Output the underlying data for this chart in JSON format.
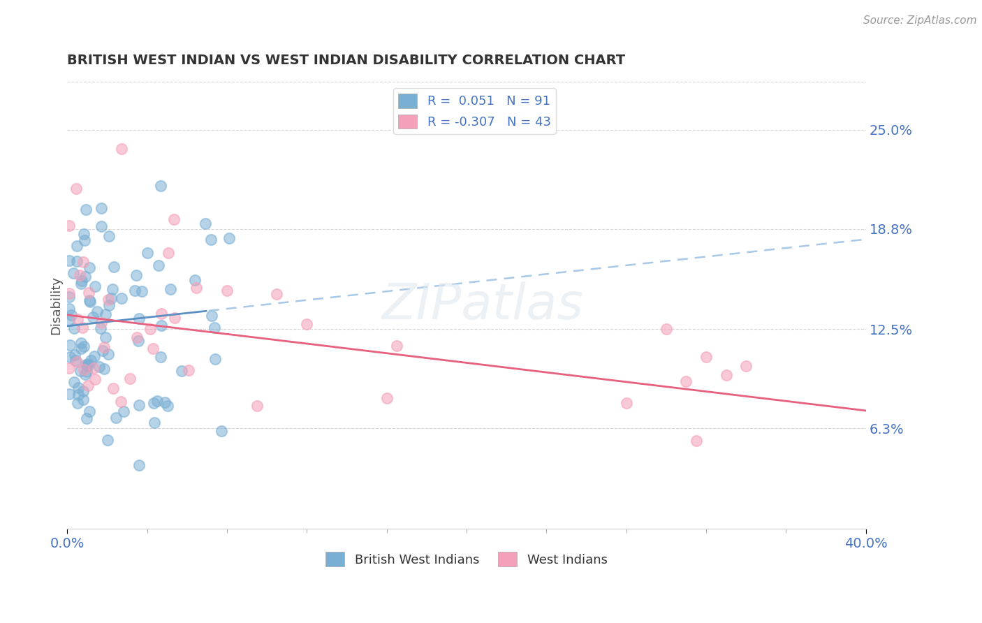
{
  "title": "BRITISH WEST INDIAN VS WEST INDIAN DISABILITY CORRELATION CHART",
  "source_text": "Source: ZipAtlas.com",
  "ylabel": "Disability",
  "xlim": [
    0.0,
    0.4
  ],
  "ylim": [
    0.0,
    0.28
  ],
  "yticks": [
    0.063,
    0.125,
    0.188,
    0.25
  ],
  "ytick_labels": [
    "6.3%",
    "12.5%",
    "18.8%",
    "25.0%"
  ],
  "xtick_labels_bottom": [
    "0.0%",
    "40.0%"
  ],
  "xticks_bottom": [
    0.0,
    0.4
  ],
  "color_blue": "#7aafd4",
  "color_pink": "#f4a0b8",
  "line_blue_solid": "#5b8fc4",
  "line_blue_dash": "#a8c8e8",
  "line_pink": "#e86080",
  "R_blue": 0.051,
  "N_blue": 91,
  "R_pink": -0.307,
  "N_pink": 43,
  "bg_color": "#ffffff",
  "grid_color": "#cccccc",
  "axis_value_color": "#4472c4",
  "title_color": "#333333",
  "legend_value_color": "#4472c4"
}
